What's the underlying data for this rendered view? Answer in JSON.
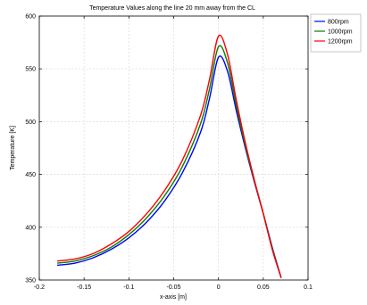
{
  "chart_data": {
    "type": "line",
    "title": "Temperature Values along the line 20 mm away from the CL",
    "xlabel": "x-axis [m]",
    "ylabel": "Temperature [K]",
    "xlim": [
      -0.2,
      0.1
    ],
    "ylim": [
      350,
      600
    ],
    "xticks": [
      -0.2,
      -0.15,
      -0.1,
      -0.05,
      0,
      0.05,
      0.1
    ],
    "xtick_labels": [
      "-0.2",
      "-0.15",
      "-0.1",
      "-0.05",
      "0",
      "0.05",
      "0.1"
    ],
    "yticks": [
      350,
      400,
      450,
      500,
      550,
      600
    ],
    "ytick_labels": [
      "350",
      "400",
      "450",
      "500",
      "550",
      "600"
    ],
    "grid": true,
    "legend_position": "outside-top-right",
    "series": [
      {
        "name": "800rpm",
        "color": "#0000ff",
        "x": [
          -0.18,
          -0.16,
          -0.14,
          -0.12,
          -0.1,
          -0.08,
          -0.06,
          -0.04,
          -0.02,
          -0.01,
          0.0,
          0.01,
          0.02,
          0.03,
          0.04,
          0.05,
          0.06,
          0.07
        ],
        "y": [
          364,
          366,
          371,
          379,
          390,
          405,
          425,
          452,
          490,
          522,
          561,
          548,
          510,
          475,
          443,
          413,
          381,
          352
        ]
      },
      {
        "name": "1000rpm",
        "color": "#008000",
        "x": [
          -0.18,
          -0.16,
          -0.14,
          -0.12,
          -0.1,
          -0.08,
          -0.06,
          -0.04,
          -0.02,
          -0.01,
          0.0,
          0.01,
          0.02,
          0.03,
          0.04,
          0.05,
          0.06,
          0.07
        ],
        "y": [
          366,
          368,
          373,
          381,
          393,
          409,
          430,
          458,
          498,
          531,
          571,
          556,
          515,
          477,
          444,
          413,
          380,
          352
        ]
      },
      {
        "name": "1200rpm",
        "color": "#ff0000",
        "x": [
          -0.18,
          -0.16,
          -0.14,
          -0.12,
          -0.1,
          -0.08,
          -0.06,
          -0.04,
          -0.02,
          -0.01,
          0.0,
          0.01,
          0.02,
          0.03,
          0.04,
          0.05,
          0.06,
          0.07
        ],
        "y": [
          368,
          370,
          375,
          384,
          396,
          413,
          435,
          464,
          506,
          540,
          581,
          564,
          520,
          480,
          445,
          413,
          379,
          352
        ]
      }
    ]
  }
}
